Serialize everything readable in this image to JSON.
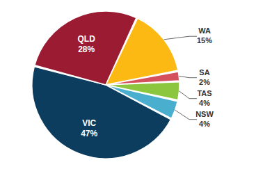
{
  "chart_data": {
    "type": "pie",
    "categories": [
      "WA",
      "SA",
      "TAS",
      "NSW",
      "VIC",
      "QLD"
    ],
    "values": [
      15,
      2,
      4,
      4,
      47,
      28
    ],
    "value_labels": [
      "15%",
      "2%",
      "4%",
      "4%",
      "47%",
      "28%"
    ],
    "colors": [
      "#fdb913",
      "#d4505c",
      "#8cc63e",
      "#4aafcf",
      "#0c3d5e",
      "#9b1b33"
    ],
    "data_labels": true
  }
}
